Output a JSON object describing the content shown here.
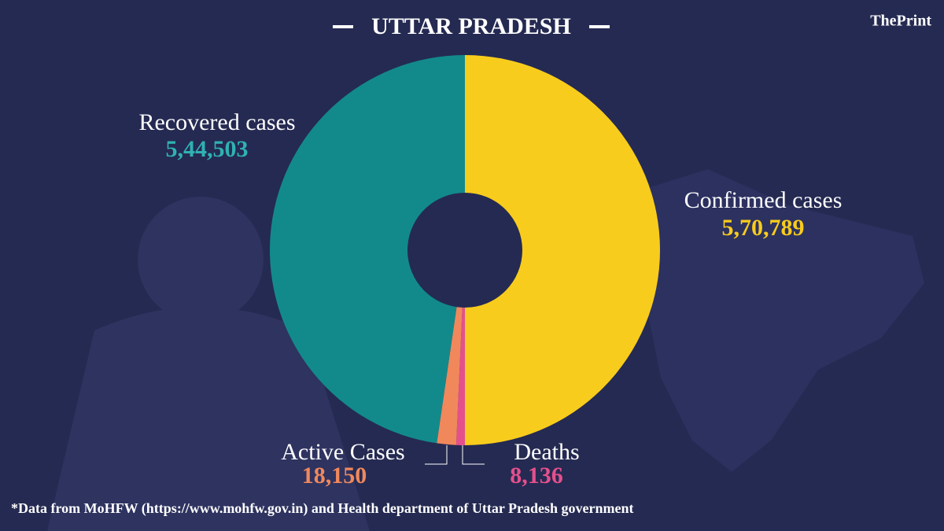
{
  "brand": "ThePrint",
  "chart_data": {
    "type": "donut",
    "title": "UTTAR PRADESH",
    "categories": [
      "Confirmed cases",
      "Deaths",
      "Active Cases",
      "Recovered cases"
    ],
    "values": [
      570789,
      8136,
      18150,
      544503
    ],
    "value_labels": [
      "5,70,789",
      "8,136",
      "18,150",
      "5,44,503"
    ],
    "colors": [
      "#f8cc1c",
      "#e4508c",
      "#f0885c",
      "#128a8c"
    ],
    "label_colors": [
      "#f8cc1c",
      "#e4508c",
      "#f0885c",
      "#2fb2b2"
    ],
    "footnote": "*Data from MoHFW (https://www.mohfw.gov.in) and Health department of  Uttar Pradesh government"
  }
}
